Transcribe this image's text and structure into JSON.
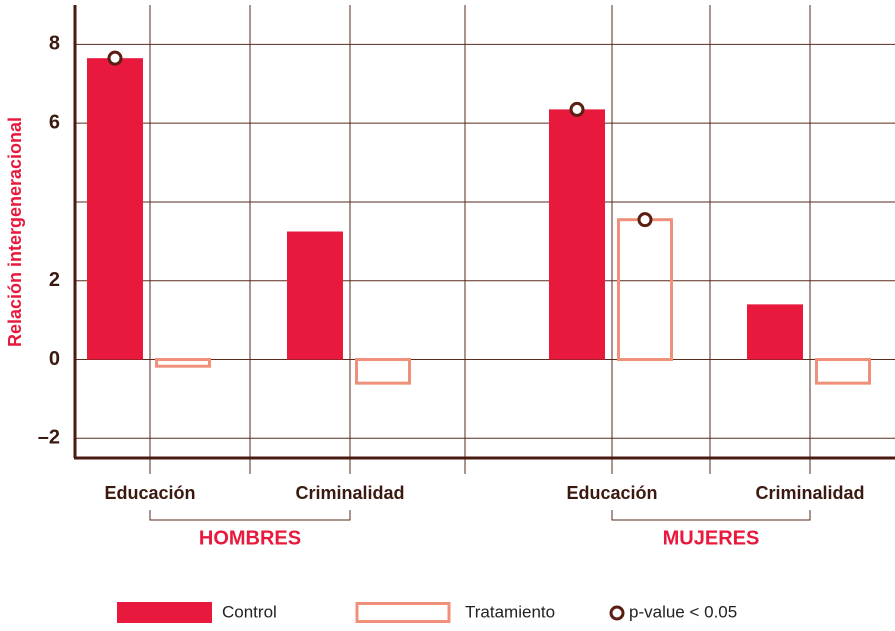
{
  "chart_data": {
    "type": "bar",
    "y_label": "Relación intergeneracional",
    "groups": [
      "HOMBRES",
      "MUJERES"
    ],
    "categories": [
      "Educación",
      "Criminalidad",
      "Educación",
      "Criminalidad"
    ],
    "series": [
      {
        "name": "Control",
        "color": "#e8193c",
        "values": [
          7.65,
          3.25,
          6.35,
          1.4
        ],
        "significant": [
          true,
          false,
          true,
          false
        ]
      },
      {
        "name": "Tratamiento",
        "color": "#f0907a",
        "values": [
          -0.17,
          -0.6,
          3.55,
          -0.6
        ],
        "significant": [
          false,
          false,
          true,
          false
        ]
      }
    ],
    "significance_label": "p-value < 0.05",
    "ylim": [
      -2.5,
      9
    ],
    "yticks": [
      {
        "value": -2,
        "label": "–2"
      },
      0,
      2,
      6,
      8
    ],
    "ygrid": [
      -2,
      0,
      2,
      4,
      6,
      8
    ],
    "grid": true
  }
}
